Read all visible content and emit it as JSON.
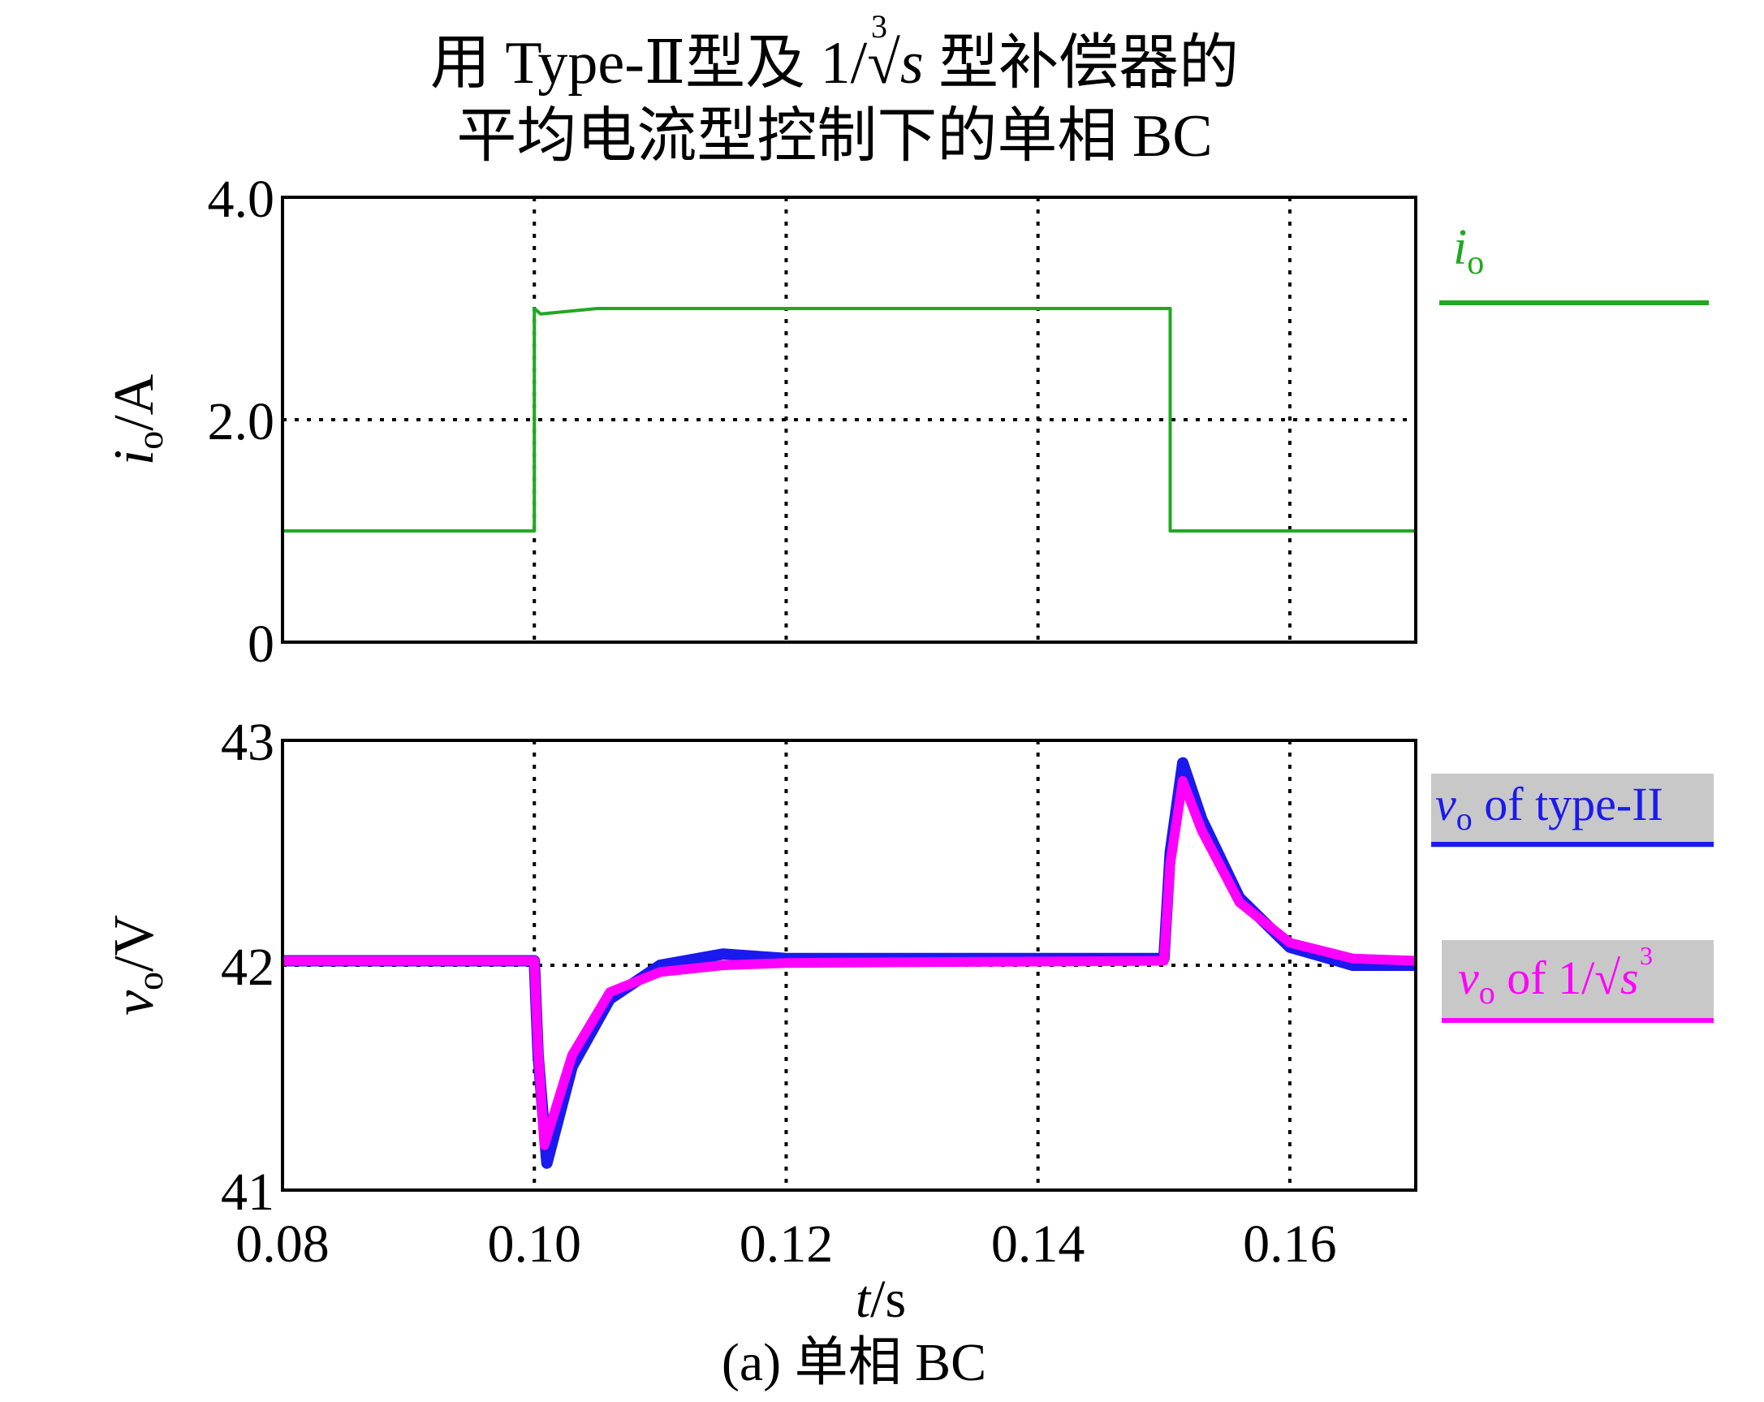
{
  "figure": {
    "title_parts": {
      "before": "用 Type-Ⅱ型及 1/",
      "root_index": "3",
      "root_var": "s",
      "after": " 型补偿器的"
    },
    "title_line2": "平均电流型控制下的单相 BC",
    "caption": "(a) 单相 BC"
  },
  "colors": {
    "io": "#22a822",
    "vo_type2": "#1a1aee",
    "vo_cubic": "#ff00ff",
    "legend_bg": "#c8c8c8",
    "grid": "#000000"
  },
  "chart_data": [
    {
      "type": "line",
      "ylabel_var": "i",
      "ylabel_sub": "o",
      "ylabel_unit": "/A",
      "xlim": [
        0.08,
        0.17
      ],
      "ylim": [
        0,
        4
      ],
      "y_ticks": [
        0,
        2,
        4
      ],
      "y_tick_labels": [
        "0",
        "2.0",
        "4.0"
      ],
      "x_grid": [
        0.1,
        0.12,
        0.14,
        0.16
      ],
      "y_grid": [
        2.0
      ],
      "legend": [
        {
          "var": "i",
          "sub": "o",
          "color_key": "io"
        }
      ],
      "series": [
        {
          "name": "io",
          "color_key": "io",
          "x": [
            0.08,
            0.1,
            0.1,
            0.1005,
            0.105,
            0.1505,
            0.1505,
            0.155,
            0.17
          ],
          "y": [
            1.0,
            1.0,
            3.0,
            2.95,
            3.0,
            3.0,
            1.0,
            1.0,
            1.0
          ]
        }
      ]
    },
    {
      "type": "line",
      "ylabel_var": "v",
      "ylabel_sub": "o",
      "ylabel_unit": "/V",
      "xlim": [
        0.08,
        0.17
      ],
      "ylim": [
        41,
        43
      ],
      "y_ticks": [
        41,
        42,
        43
      ],
      "y_tick_labels": [
        "41",
        "42",
        "43"
      ],
      "x_ticks": [
        0.08,
        0.1,
        0.12,
        0.14,
        0.16
      ],
      "x_tick_labels": [
        "0.08",
        "0.10",
        "0.12",
        "0.14",
        "0.16"
      ],
      "xlabel_var": "t",
      "xlabel_unit": "/s",
      "x_grid": [
        0.1,
        0.12,
        0.14,
        0.16
      ],
      "y_grid": [
        42.0
      ],
      "legend": [
        {
          "var": "v",
          "sub": "o",
          "text": " of type-II",
          "color_key": "vo_type2"
        },
        {
          "var": "v",
          "sub": "o",
          "text": " of 1/",
          "root_index": "3",
          "root_var": "s",
          "color_key": "vo_cubic"
        }
      ],
      "series": [
        {
          "name": "vo of type-II",
          "color_key": "vo_type2",
          "x": [
            0.08,
            0.1,
            0.1003,
            0.101,
            0.103,
            0.106,
            0.11,
            0.115,
            0.12,
            0.15,
            0.1505,
            0.1515,
            0.153,
            0.156,
            0.16,
            0.165,
            0.17
          ],
          "y": [
            42.02,
            42.02,
            41.6,
            41.12,
            41.55,
            41.85,
            42.0,
            42.05,
            42.03,
            42.03,
            42.5,
            42.9,
            42.65,
            42.3,
            42.08,
            42.0,
            42.0
          ]
        },
        {
          "name": "vo of 1/∛s",
          "color_key": "vo_cubic",
          "x": [
            0.08,
            0.1,
            0.1003,
            0.1008,
            0.103,
            0.106,
            0.11,
            0.115,
            0.12,
            0.15,
            0.1505,
            0.1515,
            0.153,
            0.156,
            0.16,
            0.165,
            0.17
          ],
          "y": [
            42.02,
            42.02,
            41.62,
            41.2,
            41.6,
            41.88,
            41.97,
            42.0,
            42.01,
            42.02,
            42.45,
            42.82,
            42.6,
            42.28,
            42.1,
            42.03,
            42.02
          ]
        }
      ]
    }
  ]
}
